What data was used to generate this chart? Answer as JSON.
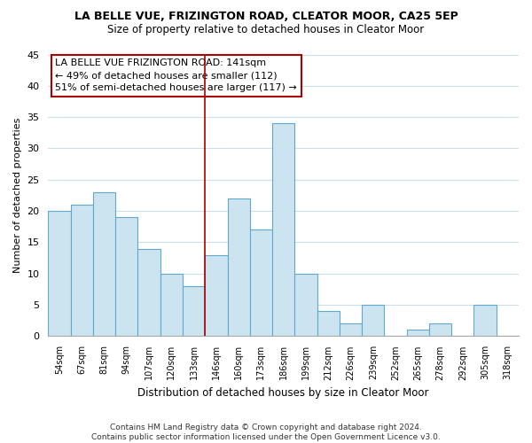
{
  "title1": "LA BELLE VUE, FRIZINGTON ROAD, CLEATOR MOOR, CA25 5EP",
  "title2": "Size of property relative to detached houses in Cleator Moor",
  "xlabel": "Distribution of detached houses by size in Cleator Moor",
  "ylabel": "Number of detached properties",
  "bin_labels": [
    "54sqm",
    "67sqm",
    "81sqm",
    "94sqm",
    "107sqm",
    "120sqm",
    "133sqm",
    "146sqm",
    "160sqm",
    "173sqm",
    "186sqm",
    "199sqm",
    "212sqm",
    "226sqm",
    "239sqm",
    "252sqm",
    "265sqm",
    "278sqm",
    "292sqm",
    "305sqm",
    "318sqm"
  ],
  "bar_heights": [
    20,
    21,
    23,
    19,
    14,
    10,
    8,
    13,
    22,
    17,
    34,
    10,
    4,
    2,
    5,
    0,
    1,
    2,
    0,
    5,
    0
  ],
  "bar_fill_color": "#cce4f0",
  "bar_edge_color": "#5fa8d0",
  "annotation_box_text_line1": "LA BELLE VUE FRIZINGTON ROAD: 141sqm",
  "annotation_box_text_line2": "← 49% of detached houses are smaller (112)",
  "annotation_box_text_line3": "51% of semi-detached houses are larger (117) →",
  "annotation_box_color": "#ffffff",
  "annotation_box_edge_color": "#aa0000",
  "property_line_color": "#aa0000",
  "property_bar_index": 6,
  "footer_line1": "Contains HM Land Registry data © Crown copyright and database right 2024.",
  "footer_line2": "Contains public sector information licensed under the Open Government Licence v3.0.",
  "ylim": [
    0,
    45
  ],
  "yticks": [
    0,
    5,
    10,
    15,
    20,
    25,
    30,
    35,
    40,
    45
  ],
  "grid_color": "#ccddee",
  "background_color": "#ffffff",
  "title1_fontsize": 9,
  "title2_fontsize": 8.5
}
